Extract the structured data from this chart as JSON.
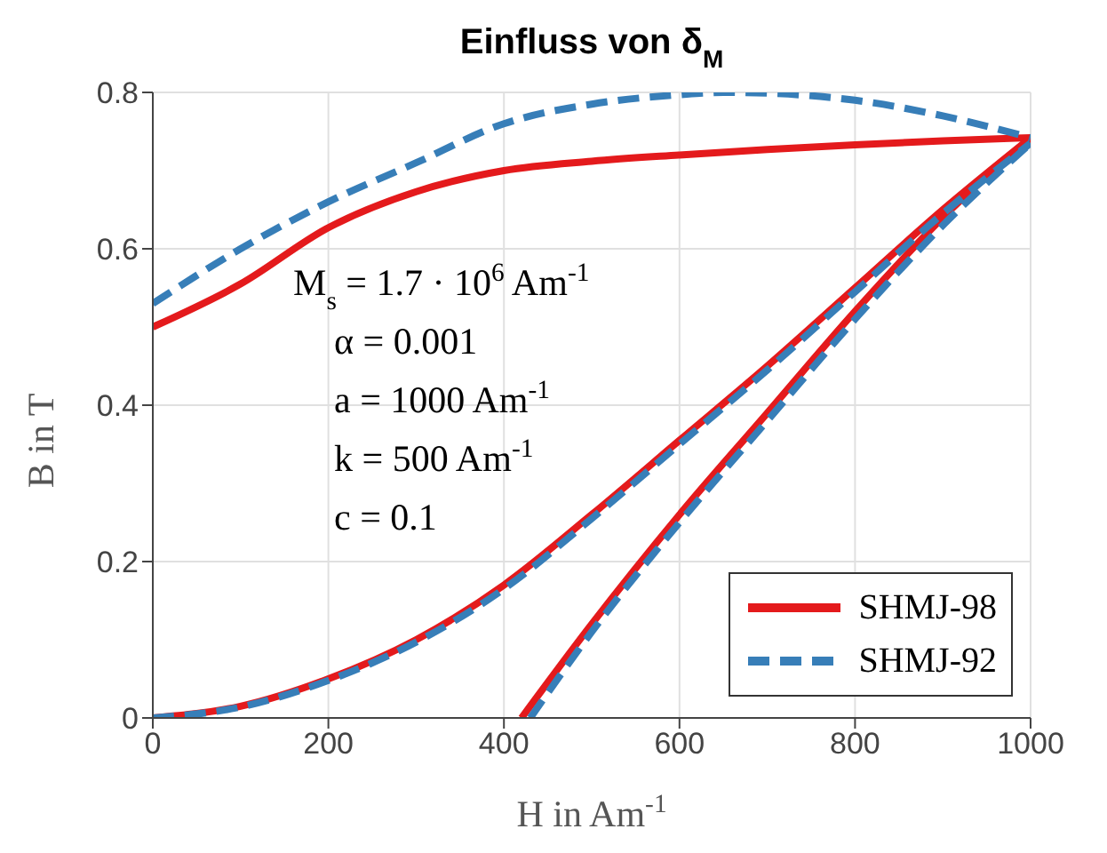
{
  "chart_data": {
    "type": "line",
    "title": "Einfluss von δ$_{M}$",
    "xlabel": "H in Am$^{-1}$",
    "ylabel": "B in T",
    "annotations": [
      "M$_{s}$ = 1.7 · 10$^{6}$ Am$^{-1}$",
      "α = 0.001",
      "a = 1000 Am$^{-1}$",
      "k = 500 Am$^{-1}$",
      "c = 0.1"
    ],
    "xlim": [
      0,
      1000
    ],
    "xticks": [
      0,
      200,
      400,
      600,
      800,
      1000
    ],
    "ylim": [
      0,
      0.8
    ],
    "yticks": [
      0,
      0.2,
      0.4,
      0.6,
      0.8
    ],
    "grid": true,
    "legend": "bottom right",
    "marker": "none",
    "series": [
      {
        "name": "SHMJ-98",
        "color": "#e41a1c",
        "line_style": "solid",
        "x": [
          0,
          100,
          200,
          300,
          400,
          500,
          600,
          700,
          800,
          900,
          1000
        ],
        "values": [
          0.5,
          0.555,
          0.627,
          0.673,
          0.7,
          0.712,
          0.72,
          0.727,
          0.733,
          0.738,
          0.742
        ]
      },
      {
        "color": "#e41a1c",
        "line_style": "solid",
        "x": [
          0,
          100,
          200,
          300,
          400,
          500,
          600,
          700,
          800,
          900,
          1000
        ],
        "values": [
          0,
          0.015,
          0.05,
          0.1,
          0.17,
          0.26,
          0.355,
          0.45,
          0.55,
          0.65,
          0.742
        ]
      },
      {
        "color": "#e41a1c",
        "line_style": "solid",
        "x": [
          420,
          500,
          600,
          700,
          800,
          900,
          1000
        ],
        "values": [
          0,
          0.12,
          0.26,
          0.39,
          0.52,
          0.64,
          0.742
        ]
      },
      {
        "name": "SHMJ-92",
        "color": "#377eb8",
        "line_style": "dashed",
        "x": [
          0,
          100,
          200,
          300,
          400,
          500,
          600,
          650,
          700,
          800,
          900,
          1000
        ],
        "values": [
          0.53,
          0.6,
          0.66,
          0.71,
          0.76,
          0.785,
          0.797,
          0.8,
          0.799,
          0.79,
          0.77,
          0.742
        ]
      },
      {
        "color": "#377eb8",
        "line_style": "dashed",
        "x": [
          0,
          100,
          200,
          300,
          400,
          500,
          600,
          700,
          800,
          900,
          1000
        ],
        "values": [
          0,
          0.014,
          0.048,
          0.097,
          0.165,
          0.255,
          0.35,
          0.445,
          0.545,
          0.645,
          0.735
        ]
      },
      {
        "color": "#377eb8",
        "line_style": "dashed",
        "x": [
          430,
          500,
          600,
          700,
          800,
          900,
          1000
        ],
        "values": [
          0,
          0.11,
          0.25,
          0.38,
          0.51,
          0.63,
          0.735
        ]
      }
    ]
  }
}
